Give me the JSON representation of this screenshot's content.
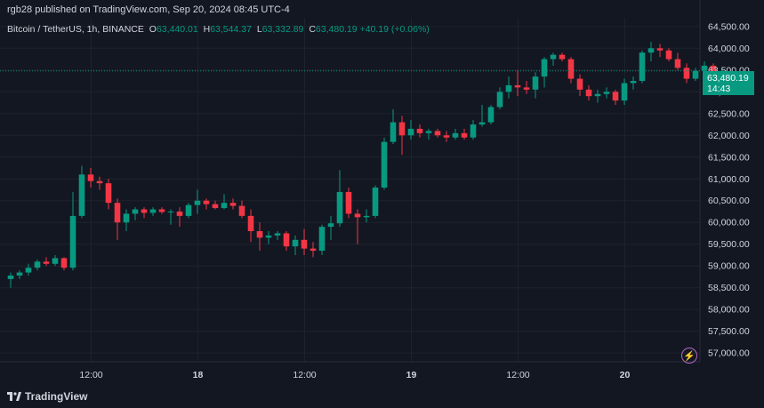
{
  "header": {
    "published": "rgb28 published on TradingView.com, Sep 20, 2024 08:45 UTC-4"
  },
  "legend": {
    "symbol": "Bitcoin / TetherUS, 1h, BINANCE",
    "open_label": "O",
    "open": "63,440.01",
    "high_label": "H",
    "high": "63,544.37",
    "low_label": "L",
    "low": "63,332.89",
    "close_label": "C",
    "close": "63,480.19",
    "change": "+40.19 (+0.06%)"
  },
  "price_tag": {
    "price": "63,480.19",
    "countdown": "14:43"
  },
  "footer": {
    "brand": "TradingView",
    "logo_icon": "tradingview-logo-icon",
    "flash_icon": "lightning-icon"
  },
  "colors": {
    "background": "#131722",
    "up": "#089981",
    "down": "#f23645",
    "grid": "#1e222d",
    "text": "#d1d4dc"
  },
  "chart_data": {
    "type": "candlestick",
    "symbol": "BTCUSDT",
    "interval": "1h",
    "ylim": [
      56800,
      64700
    ],
    "yticks": [
      57000,
      57500,
      58000,
      58500,
      59000,
      59500,
      60000,
      60500,
      61000,
      61500,
      62000,
      62500,
      63000,
      63500,
      64000,
      64500
    ],
    "ytick_labels": [
      "57,000.00",
      "57,500.00",
      "58,000.00",
      "58,500.00",
      "59,000.00",
      "59,500.00",
      "60,000.00",
      "60,500.00",
      "61,000.00",
      "61,500.00",
      "62,000.00",
      "62,500.00",
      "63,000.00",
      "63,500.00",
      "64,000.00",
      "64,500.00"
    ],
    "xticks": [
      {
        "label": "12:00",
        "index": 9
      },
      {
        "label": "18",
        "index": 21
      },
      {
        "label": "12:00",
        "index": 33
      },
      {
        "label": "19",
        "index": 45
      },
      {
        "label": "12:00",
        "index": 57
      },
      {
        "label": "20",
        "index": 69
      }
    ],
    "last_price": 63480.19,
    "grid": true,
    "candles": [
      {
        "o": 58700,
        "h": 58850,
        "l": 58500,
        "c": 58780
      },
      {
        "o": 58780,
        "h": 58900,
        "l": 58700,
        "c": 58850
      },
      {
        "o": 58850,
        "h": 59050,
        "l": 58780,
        "c": 58960
      },
      {
        "o": 58960,
        "h": 59150,
        "l": 58900,
        "c": 59100
      },
      {
        "o": 59100,
        "h": 59200,
        "l": 59000,
        "c": 59050
      },
      {
        "o": 59050,
        "h": 59250,
        "l": 59000,
        "c": 59180
      },
      {
        "o": 59180,
        "h": 59200,
        "l": 58900,
        "c": 58960
      },
      {
        "o": 58960,
        "h": 60700,
        "l": 58900,
        "c": 60150
      },
      {
        "o": 60150,
        "h": 61300,
        "l": 60100,
        "c": 61100
      },
      {
        "o": 61100,
        "h": 61250,
        "l": 60800,
        "c": 60950
      },
      {
        "o": 60950,
        "h": 61050,
        "l": 60750,
        "c": 60900
      },
      {
        "o": 60900,
        "h": 61000,
        "l": 60300,
        "c": 60450
      },
      {
        "o": 60450,
        "h": 60550,
        "l": 59600,
        "c": 60000
      },
      {
        "o": 60000,
        "h": 60300,
        "l": 59800,
        "c": 60200
      },
      {
        "o": 60200,
        "h": 60350,
        "l": 60050,
        "c": 60300
      },
      {
        "o": 60300,
        "h": 60350,
        "l": 60100,
        "c": 60220
      },
      {
        "o": 60220,
        "h": 60350,
        "l": 60150,
        "c": 60300
      },
      {
        "o": 60300,
        "h": 60350,
        "l": 60200,
        "c": 60240
      },
      {
        "o": 60240,
        "h": 60300,
        "l": 59950,
        "c": 60250
      },
      {
        "o": 60250,
        "h": 60350,
        "l": 59900,
        "c": 60150
      },
      {
        "o": 60150,
        "h": 60450,
        "l": 60100,
        "c": 60400
      },
      {
        "o": 60400,
        "h": 60750,
        "l": 60200,
        "c": 60500
      },
      {
        "o": 60500,
        "h": 60550,
        "l": 60300,
        "c": 60420
      },
      {
        "o": 60420,
        "h": 60500,
        "l": 60300,
        "c": 60330
      },
      {
        "o": 60330,
        "h": 60650,
        "l": 60300,
        "c": 60450
      },
      {
        "o": 60450,
        "h": 60550,
        "l": 60300,
        "c": 60380
      },
      {
        "o": 60380,
        "h": 60500,
        "l": 60100,
        "c": 60150
      },
      {
        "o": 60150,
        "h": 60300,
        "l": 59550,
        "c": 59800
      },
      {
        "o": 59800,
        "h": 60000,
        "l": 59350,
        "c": 59650
      },
      {
        "o": 59650,
        "h": 59800,
        "l": 59500,
        "c": 59700
      },
      {
        "o": 59700,
        "h": 59800,
        "l": 59600,
        "c": 59750
      },
      {
        "o": 59750,
        "h": 59800,
        "l": 59350,
        "c": 59450
      },
      {
        "o": 59450,
        "h": 59700,
        "l": 59250,
        "c": 59600
      },
      {
        "o": 59600,
        "h": 59850,
        "l": 59250,
        "c": 59400
      },
      {
        "o": 59400,
        "h": 59550,
        "l": 59200,
        "c": 59350
      },
      {
        "o": 59350,
        "h": 59950,
        "l": 59250,
        "c": 59900
      },
      {
        "o": 59900,
        "h": 60150,
        "l": 59600,
        "c": 59980
      },
      {
        "o": 59980,
        "h": 61200,
        "l": 59900,
        "c": 60700
      },
      {
        "o": 60700,
        "h": 60800,
        "l": 60100,
        "c": 60200
      },
      {
        "o": 60200,
        "h": 60300,
        "l": 59500,
        "c": 60120
      },
      {
        "o": 60120,
        "h": 60300,
        "l": 60000,
        "c": 60150
      },
      {
        "o": 60150,
        "h": 60850,
        "l": 60100,
        "c": 60800
      },
      {
        "o": 60800,
        "h": 61950,
        "l": 60750,
        "c": 61850
      },
      {
        "o": 61850,
        "h": 62600,
        "l": 61800,
        "c": 62300
      },
      {
        "o": 62300,
        "h": 62450,
        "l": 61550,
        "c": 62000
      },
      {
        "o": 62000,
        "h": 62350,
        "l": 61900,
        "c": 62150
      },
      {
        "o": 62150,
        "h": 62250,
        "l": 61950,
        "c": 62050
      },
      {
        "o": 62050,
        "h": 62150,
        "l": 61900,
        "c": 62100
      },
      {
        "o": 62100,
        "h": 62150,
        "l": 61950,
        "c": 62000
      },
      {
        "o": 62000,
        "h": 62100,
        "l": 61850,
        "c": 61950
      },
      {
        "o": 61950,
        "h": 62150,
        "l": 61900,
        "c": 62050
      },
      {
        "o": 62050,
        "h": 62150,
        "l": 61900,
        "c": 61950
      },
      {
        "o": 61950,
        "h": 62350,
        "l": 61900,
        "c": 62250
      },
      {
        "o": 62250,
        "h": 62700,
        "l": 62200,
        "c": 62300
      },
      {
        "o": 62300,
        "h": 62700,
        "l": 62250,
        "c": 62650
      },
      {
        "o": 62650,
        "h": 63100,
        "l": 62600,
        "c": 63000
      },
      {
        "o": 63000,
        "h": 63350,
        "l": 62850,
        "c": 63150
      },
      {
        "o": 63150,
        "h": 63500,
        "l": 62900,
        "c": 63100
      },
      {
        "o": 63100,
        "h": 63250,
        "l": 62950,
        "c": 63050
      },
      {
        "o": 63050,
        "h": 63450,
        "l": 62850,
        "c": 63350
      },
      {
        "o": 63350,
        "h": 63800,
        "l": 63100,
        "c": 63750
      },
      {
        "o": 63750,
        "h": 63900,
        "l": 63600,
        "c": 63850
      },
      {
        "o": 63850,
        "h": 63900,
        "l": 63700,
        "c": 63750
      },
      {
        "o": 63750,
        "h": 63800,
        "l": 63200,
        "c": 63300
      },
      {
        "o": 63300,
        "h": 63400,
        "l": 62900,
        "c": 63050
      },
      {
        "o": 63050,
        "h": 63150,
        "l": 62800,
        "c": 62900
      },
      {
        "o": 62900,
        "h": 63050,
        "l": 62750,
        "c": 62950
      },
      {
        "o": 62950,
        "h": 63100,
        "l": 62850,
        "c": 63000
      },
      {
        "o": 63000,
        "h": 63050,
        "l": 62700,
        "c": 62800
      },
      {
        "o": 62800,
        "h": 63300,
        "l": 62700,
        "c": 63200
      },
      {
        "o": 63200,
        "h": 63350,
        "l": 63050,
        "c": 63250
      },
      {
        "o": 63250,
        "h": 63950,
        "l": 63200,
        "c": 63900
      },
      {
        "o": 63900,
        "h": 64150,
        "l": 63700,
        "c": 64000
      },
      {
        "o": 64000,
        "h": 64100,
        "l": 63800,
        "c": 63950
      },
      {
        "o": 63950,
        "h": 64000,
        "l": 63700,
        "c": 63750
      },
      {
        "o": 63750,
        "h": 63900,
        "l": 63500,
        "c": 63550
      },
      {
        "o": 63550,
        "h": 63650,
        "l": 63200,
        "c": 63300
      },
      {
        "o": 63300,
        "h": 63550,
        "l": 63250,
        "c": 63480
      },
      {
        "o": 63480,
        "h": 63700,
        "l": 63400,
        "c": 63600
      },
      {
        "o": 63600,
        "h": 63650,
        "l": 63400,
        "c": 63440
      },
      {
        "o": 63440,
        "h": 63544.37,
        "l": 63332.89,
        "c": 63480.19
      }
    ]
  }
}
